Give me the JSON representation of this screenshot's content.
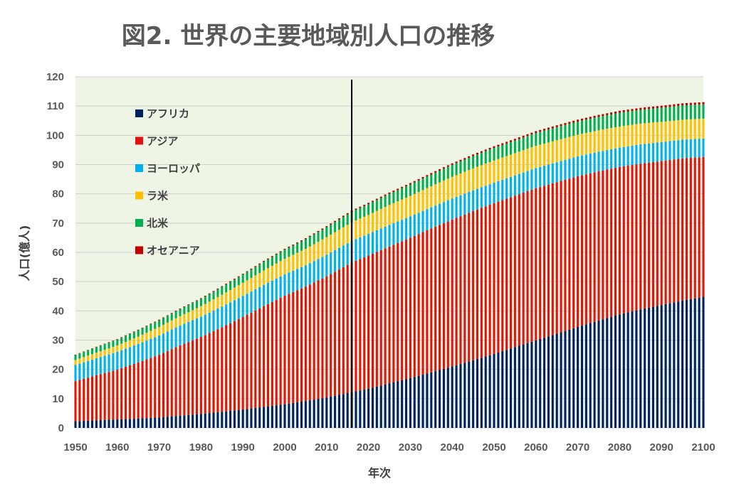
{
  "chart_data": {
    "type": "bar",
    "stacked": true,
    "title": "図2. 世界の主要地域別人口の推移",
    "xlabel": "年次",
    "ylabel": "人口(億人)",
    "xlim": [
      1950,
      2100
    ],
    "ylim": [
      0,
      120
    ],
    "x_ticks": [
      1950,
      1960,
      1970,
      1980,
      1990,
      2000,
      2010,
      2020,
      2030,
      2040,
      2050,
      2060,
      2070,
      2080,
      2090,
      2100
    ],
    "y_ticks": [
      0,
      10,
      20,
      30,
      40,
      50,
      60,
      70,
      80,
      90,
      100,
      110,
      120
    ],
    "grid": true,
    "legend_position": "top-left",
    "marker_line_year": 2016,
    "background_color": "#eef5e4",
    "x": [
      1950,
      1955,
      1960,
      1965,
      1970,
      1975,
      1980,
      1985,
      1990,
      1995,
      2000,
      2005,
      2010,
      2015,
      2016,
      2020,
      2025,
      2030,
      2035,
      2040,
      2045,
      2050,
      2055,
      2060,
      2065,
      2070,
      2075,
      2080,
      2085,
      2090,
      2095,
      2100
    ],
    "series": [
      {
        "name": "アフリカ",
        "color": "#002060",
        "values": [
          2.3,
          2.6,
          2.9,
          3.2,
          3.6,
          4.2,
          4.8,
          5.5,
          6.3,
          7.2,
          8.1,
          9.2,
          10.4,
          11.9,
          12.2,
          13.4,
          15.2,
          17.0,
          19.0,
          21.0,
          23.1,
          25.3,
          27.6,
          29.9,
          32.2,
          34.5,
          36.7,
          38.8,
          40.5,
          42.0,
          43.5,
          44.8
        ]
      },
      {
        "name": "アジア",
        "color": "#e0140c",
        "values": [
          13.7,
          15.4,
          17.0,
          19.2,
          21.4,
          24.0,
          26.3,
          28.9,
          31.6,
          34.4,
          37.1,
          39.1,
          41.4,
          43.8,
          44.3,
          45.5,
          46.8,
          48.0,
          49.2,
          50.2,
          51.0,
          51.5,
          51.8,
          52.0,
          51.8,
          51.5,
          51.0,
          50.4,
          49.8,
          49.2,
          48.6,
          47.8
        ]
      },
      {
        "name": "ヨーロッパ",
        "color": "#00b0f0",
        "values": [
          5.5,
          5.8,
          6.1,
          6.3,
          6.6,
          6.8,
          6.9,
          7.1,
          7.2,
          7.3,
          7.3,
          7.3,
          7.4,
          7.4,
          7.4,
          7.4,
          7.4,
          7.3,
          7.2,
          7.2,
          7.1,
          7.0,
          6.9,
          6.9,
          6.8,
          6.8,
          6.7,
          6.6,
          6.6,
          6.5,
          6.4,
          6.3
        ]
      },
      {
        "name": "ラ米",
        "color": "#ffc000",
        "values": [
          1.7,
          1.9,
          2.2,
          2.5,
          2.9,
          3.2,
          3.6,
          4.0,
          4.5,
          4.9,
          5.3,
          5.6,
          6.0,
          6.3,
          6.4,
          6.5,
          6.8,
          7.0,
          7.2,
          7.4,
          7.5,
          7.6,
          7.6,
          7.6,
          7.5,
          7.4,
          7.3,
          7.2,
          7.1,
          6.9,
          6.8,
          6.8
        ]
      },
      {
        "name": "北米",
        "color": "#00b050",
        "values": [
          1.7,
          1.9,
          2.0,
          2.2,
          2.3,
          2.4,
          2.5,
          2.7,
          2.8,
          3.0,
          3.1,
          3.3,
          3.4,
          3.6,
          3.6,
          3.7,
          3.8,
          3.9,
          4.0,
          4.1,
          4.2,
          4.3,
          4.3,
          4.4,
          4.5,
          4.5,
          4.6,
          4.7,
          4.7,
          4.8,
          4.9,
          4.9
        ]
      },
      {
        "name": "オセアニア",
        "color": "#c00000",
        "values": [
          0.13,
          0.14,
          0.16,
          0.18,
          0.2,
          0.21,
          0.23,
          0.25,
          0.27,
          0.29,
          0.31,
          0.33,
          0.37,
          0.4,
          0.4,
          0.42,
          0.45,
          0.48,
          0.5,
          0.52,
          0.55,
          0.57,
          0.6,
          0.62,
          0.63,
          0.65,
          0.67,
          0.68,
          0.7,
          0.71,
          0.73,
          0.74
        ]
      }
    ]
  }
}
